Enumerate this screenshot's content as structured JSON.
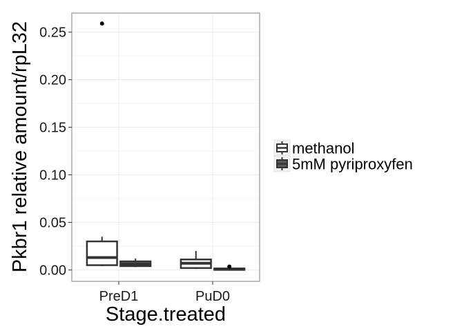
{
  "chart_data": {
    "type": "boxplot",
    "xlabel": "Stage.treated",
    "ylabel": "Pkbr1 relative amount/rpL32",
    "categories": [
      "PreD1",
      "PuD0"
    ],
    "ylim": [
      -0.012,
      0.27
    ],
    "yticks": [
      0.0,
      0.05,
      0.1,
      0.15,
      0.2,
      0.25
    ],
    "ytick_labels": [
      "0.00",
      "0.05",
      "0.10",
      "0.15",
      "0.20",
      "0.25"
    ],
    "grid": true,
    "legend_position": "right",
    "series": [
      {
        "name": "methanol",
        "fill": "#ffffff",
        "boxes": [
          {
            "category": "PreD1",
            "min": 0.004,
            "q1": 0.005,
            "median": 0.013,
            "q3": 0.03,
            "max": 0.035,
            "outliers": [
              0.259
            ]
          },
          {
            "category": "PuD0",
            "min": 0.001,
            "q1": 0.002,
            "median": 0.007,
            "q3": 0.011,
            "max": 0.02,
            "outliers": []
          }
        ]
      },
      {
        "name": "5mM pyriproxyfen",
        "fill": "#595959",
        "boxes": [
          {
            "category": "PreD1",
            "min": 0.003,
            "q1": 0.004,
            "median": 0.006,
            "q3": 0.009,
            "max": 0.012,
            "outliers": []
          },
          {
            "category": "PuD0",
            "min": 0.0005,
            "q1": 0.0008,
            "median": 0.001,
            "q3": 0.0015,
            "max": 0.002,
            "outliers": [
              0.0035
            ]
          }
        ]
      }
    ]
  }
}
